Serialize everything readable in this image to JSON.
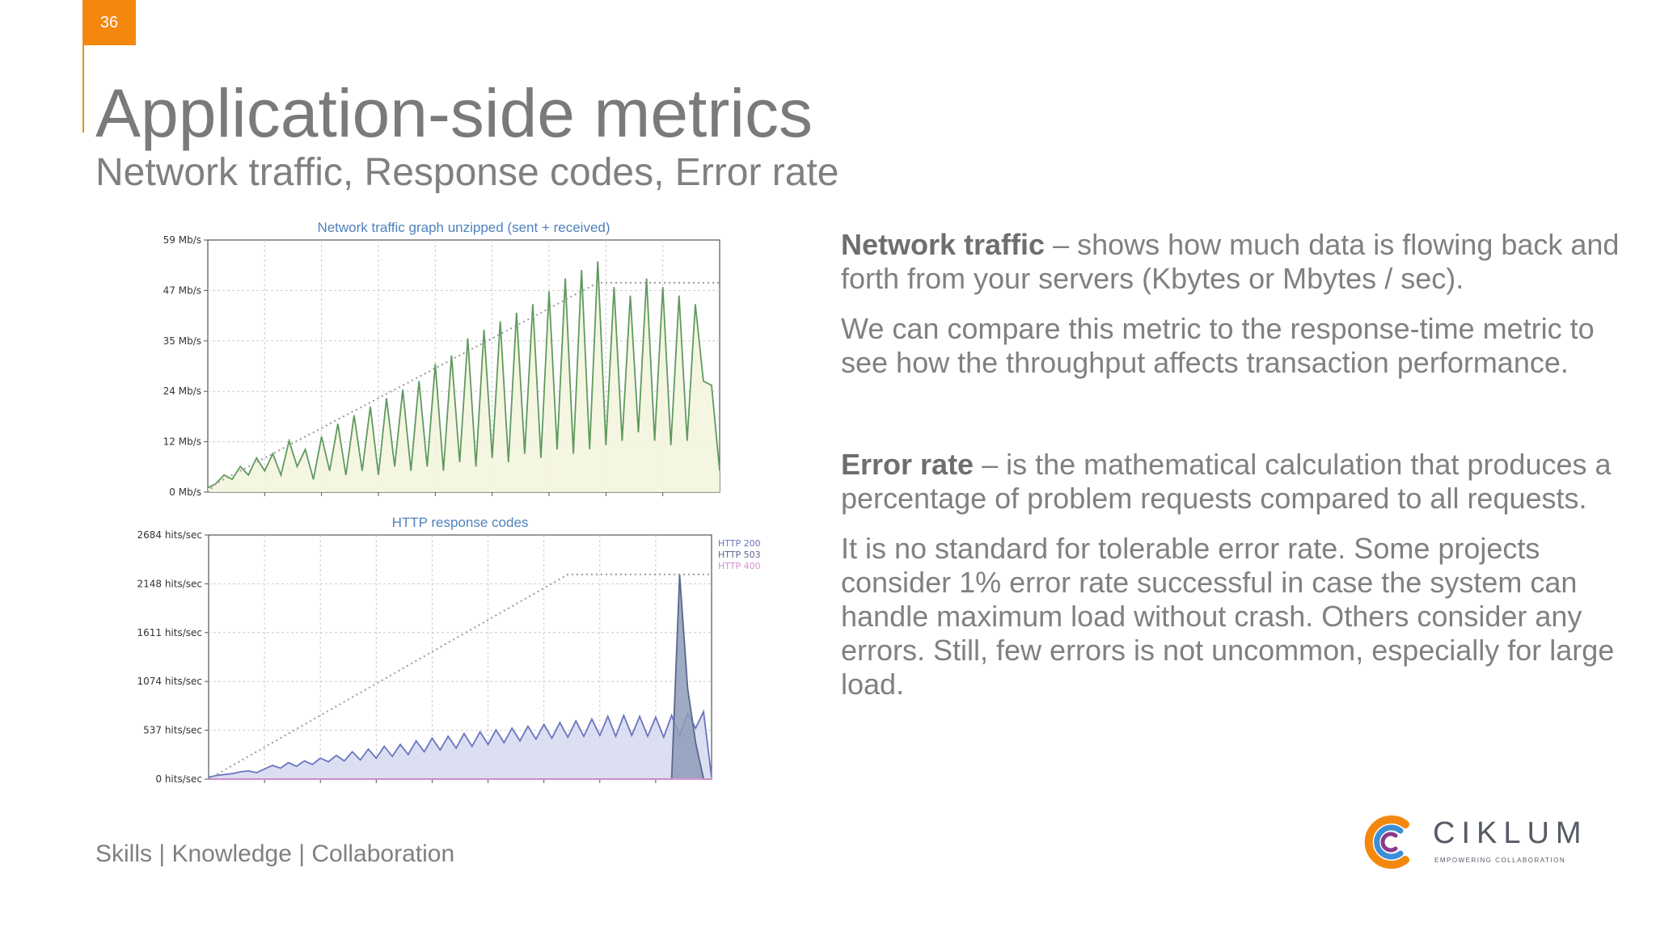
{
  "slide": {
    "page_number": "36",
    "title": "Application-side metrics",
    "subtitle": "Network traffic, Response codes, Error rate",
    "footer": "Skills | Knowledge | Collaboration",
    "accent_color": "#f4880f"
  },
  "text": {
    "network_traffic_term": "Network traffic",
    "network_traffic_desc": " – shows how much data is flowing back and forth from your servers (Kbytes or Mbytes / sec).",
    "compare_paragraph": "We can compare this metric to the response-time metric to see how the throughput affects transaction performance.",
    "error_rate_term": "Error rate",
    "error_rate_desc": " –  is the mathematical calculation that produces a percentage of problem requests compared to all requests.",
    "standard_paragraph": "It is no standard for tolerable error rate. Some projects consider 1% error rate successful in case the system can handle maximum load without crash. Others consider any errors. Still, few errors is not uncommon, especially for large load."
  },
  "logo": {
    "name": "CIKLUM",
    "tagline": "EMPOWERING COLLABORATION",
    "icon": "ciklum-c-logo-icon"
  },
  "chart_data": [
    {
      "type": "line",
      "title": "Network traffic graph unzipped (sent + received)",
      "y_tick_labels": [
        "0 Mb/s",
        "12 Mb/s",
        "24 Mb/s",
        "35 Mb/s",
        "47 Mb/s",
        "59 Mb/s"
      ],
      "ylim": [
        0,
        59
      ],
      "grid": true,
      "series": [
        {
          "color": "#5f9a5f",
          "fill": "#f3f5dc",
          "values": [
            1,
            2,
            4,
            3,
            6,
            4,
            8,
            5,
            9,
            4,
            12,
            6,
            10,
            3,
            13,
            5,
            16,
            4,
            18,
            5,
            20,
            4,
            22,
            6,
            24,
            5,
            26,
            6,
            30,
            5,
            32,
            7,
            36,
            6,
            38,
            8,
            40,
            7,
            42,
            9,
            44,
            8,
            47,
            10,
            50,
            9,
            52,
            10,
            54,
            11,
            48,
            12,
            46,
            14,
            50,
            12,
            48,
            11,
            46,
            12,
            44,
            26,
            25,
            5
          ]
        },
        {
          "color": "#999999",
          "dotted": true,
          "values": [
            0,
            2,
            3,
            4,
            5,
            6,
            7,
            8,
            9,
            10,
            11,
            12,
            13,
            14,
            15,
            16,
            17,
            18,
            19,
            20,
            21,
            22,
            23,
            24,
            25,
            26,
            27,
            28,
            29,
            30,
            31,
            32,
            33,
            34,
            35,
            36,
            37,
            38,
            39,
            40,
            41,
            42,
            43,
            44,
            45,
            46,
            47,
            48,
            49,
            49,
            49,
            49,
            49,
            49,
            49,
            49,
            49,
            49,
            49,
            49,
            49,
            49,
            49,
            49
          ]
        }
      ]
    },
    {
      "type": "area",
      "title": "HTTP response codes",
      "y_tick_labels": [
        "0 hits/sec",
        "537 hits/sec",
        "1074 hits/sec",
        "1611 hits/sec",
        "2148 hits/sec",
        "2684 hits/sec"
      ],
      "ylim": [
        0,
        2684
      ],
      "grid": true,
      "legend": "top-right",
      "series": [
        {
          "name": "HTTP 200",
          "color": "#6a74c0",
          "fill": "#d5d9ef",
          "values": [
            20,
            40,
            50,
            60,
            80,
            90,
            70,
            110,
            150,
            120,
            180,
            140,
            200,
            160,
            230,
            190,
            260,
            200,
            300,
            210,
            330,
            230,
            360,
            250,
            380,
            270,
            420,
            300,
            450,
            320,
            470,
            340,
            500,
            360,
            520,
            380,
            540,
            400,
            560,
            420,
            580,
            440,
            600,
            450,
            620,
            460,
            640,
            470,
            660,
            480,
            690,
            470,
            700,
            480,
            690,
            470,
            680,
            460,
            700,
            480,
            720,
            560,
            740,
            20
          ]
        },
        {
          "name": "HTTP 503",
          "color": "#5a6790",
          "fill": "#8e9bb8",
          "values": [
            0,
            0,
            0,
            0,
            0,
            0,
            0,
            0,
            0,
            0,
            0,
            0,
            0,
            0,
            0,
            0,
            0,
            0,
            0,
            0,
            0,
            0,
            0,
            0,
            0,
            0,
            0,
            0,
            0,
            0,
            0,
            0,
            0,
            0,
            0,
            0,
            0,
            0,
            0,
            0,
            0,
            0,
            0,
            0,
            0,
            0,
            0,
            0,
            0,
            0,
            0,
            0,
            0,
            0,
            0,
            0,
            0,
            0,
            0,
            2250,
            1000,
            400,
            0,
            0
          ]
        },
        {
          "name": "HTTP 400",
          "color": "#d88fd0",
          "values": [
            0,
            0,
            0,
            0,
            0,
            0,
            0,
            0,
            0,
            0,
            0,
            0,
            0,
            0,
            0,
            0,
            0,
            0,
            0,
            0,
            0,
            0,
            0,
            0,
            0,
            0,
            0,
            0,
            0,
            0,
            0,
            0,
            0,
            0,
            0,
            0,
            0,
            0,
            0,
            0,
            0,
            0,
            0,
            0,
            0,
            0,
            0,
            0,
            0,
            0,
            0,
            0,
            0,
            0,
            0,
            0,
            0,
            0,
            0,
            0,
            0,
            0,
            0,
            0
          ]
        },
        {
          "color": "#999999",
          "dotted": true,
          "values": [
            0,
            50,
            100,
            150,
            200,
            250,
            300,
            350,
            400,
            450,
            500,
            550,
            600,
            650,
            700,
            750,
            800,
            850,
            900,
            950,
            1000,
            1050,
            1100,
            1150,
            1200,
            1250,
            1300,
            1350,
            1400,
            1450,
            1500,
            1550,
            1600,
            1650,
            1700,
            1750,
            1800,
            1850,
            1900,
            1950,
            2000,
            2050,
            2100,
            2150,
            2200,
            2250,
            2250,
            2250,
            2250,
            2250,
            2250,
            2250,
            2250,
            2250,
            2250,
            2250,
            2250,
            2250,
            2250,
            2250,
            2250,
            2250,
            2250,
            2250
          ]
        }
      ]
    }
  ]
}
